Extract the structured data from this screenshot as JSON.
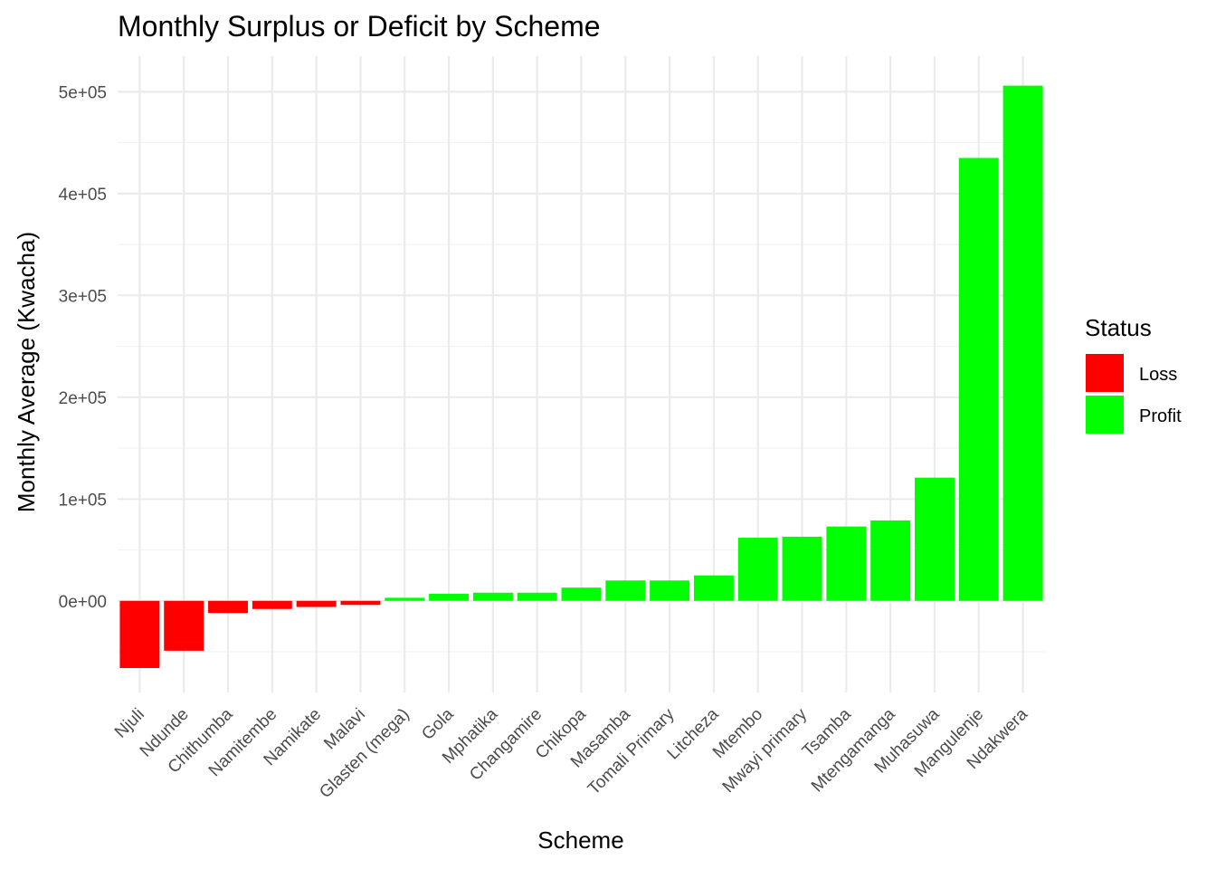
{
  "chart_data": {
    "type": "bar",
    "title": "Monthly Surplus or Deficit by Scheme",
    "xlabel": "Scheme",
    "ylabel": "Monthly Average (Kwacha)",
    "ylim": [
      -90000,
      535000
    ],
    "yticks": [
      0,
      100000,
      200000,
      300000,
      400000,
      500000
    ],
    "ytick_labels": [
      "0e+00",
      "1e+05",
      "2e+05",
      "3e+05",
      "4e+05",
      "5e+05"
    ],
    "grid": true,
    "legend": {
      "title": "Status",
      "placement": "right",
      "entries": [
        {
          "label": "Loss",
          "color": "#ff0000"
        },
        {
          "label": "Profit",
          "color": "#00ff00"
        }
      ]
    },
    "categories": [
      "Njuli",
      "Ndunde",
      "Chithumba",
      "Namitembe",
      "Namikate",
      "Malavi",
      "Glasten (mega)",
      "Gola",
      "Mphatika",
      "Changamire",
      "Chikopa",
      "Masamba",
      "Tomali Primary",
      "Litcheza",
      "Mtembo",
      "Mwayi primary",
      "Tsamba",
      "Mtengamanga",
      "Muhasuwa",
      "Mangulenje",
      "Ndakwera"
    ],
    "values": [
      -66000,
      -49000,
      -12000,
      -8000,
      -6000,
      -4000,
      3000,
      7000,
      8000,
      8000,
      13000,
      20000,
      20000,
      25000,
      62000,
      63000,
      73000,
      79000,
      121000,
      435000,
      506000
    ],
    "status": [
      "Loss",
      "Loss",
      "Loss",
      "Loss",
      "Loss",
      "Loss",
      "Profit",
      "Profit",
      "Profit",
      "Profit",
      "Profit",
      "Profit",
      "Profit",
      "Profit",
      "Profit",
      "Profit",
      "Profit",
      "Profit",
      "Profit",
      "Profit",
      "Profit"
    ]
  }
}
